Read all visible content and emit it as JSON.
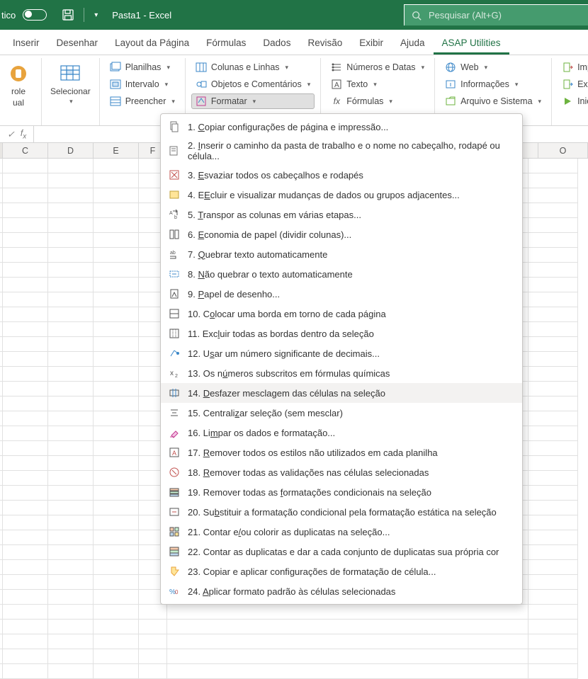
{
  "titlebar": {
    "autosave_label": "tico",
    "document_title": "Pasta1 - Excel",
    "search_placeholder": "Pesquisar (Alt+G)"
  },
  "tabs": [
    {
      "label": "Inserir",
      "active": false
    },
    {
      "label": "Desenhar",
      "active": false
    },
    {
      "label": "Layout da Página",
      "active": false
    },
    {
      "label": "Fórmulas",
      "active": false
    },
    {
      "label": "Dados",
      "active": false
    },
    {
      "label": "Revisão",
      "active": false
    },
    {
      "label": "Exibir",
      "active": false
    },
    {
      "label": "Ajuda",
      "active": false
    },
    {
      "label": "ASAP Utilities",
      "active": true
    }
  ],
  "ribbon": {
    "group1": {
      "line1": "role",
      "line2": "ual"
    },
    "group2": {
      "label": "Selecionar"
    },
    "group3": {
      "planilhas": "Planilhas",
      "intervalo": "Intervalo",
      "preencher": "Preencher"
    },
    "group4": {
      "colunas": "Colunas e Linhas",
      "objetos": "Objetos e Comentários",
      "formatar": "Formatar"
    },
    "group5": {
      "numeros": "Números e Datas",
      "texto": "Texto",
      "formulas": "Fórmulas"
    },
    "group6": {
      "web": "Web",
      "info": "Informações",
      "arquivo": "Arquivo e Sistema"
    },
    "group7": {
      "importar": "Importar",
      "exportar": "Exportar",
      "iniciar": "Iniciar"
    }
  },
  "columns": [
    "",
    "C",
    "D",
    "E",
    "F",
    "",
    "",
    "",
    "",
    "",
    "",
    "",
    "O"
  ],
  "menu": [
    {
      "n": "1",
      "u": "C",
      "rest": "opiar configurações de página e impressão...",
      "icon": "copy-page",
      "hover": false
    },
    {
      "n": "2",
      "u": "I",
      "rest": "nserir o caminho da pasta de trabalho e o nome no cabeçalho, rodapé ou célula...",
      "icon": "insert-path",
      "hover": false
    },
    {
      "n": "3",
      "u": "E",
      "rest": "svaziar todos os cabeçalhos e rodapés",
      "icon": "empty-hf",
      "hover": false
    },
    {
      "n": "4",
      "u": "E",
      "pre": "E",
      "rest": "cluir e visualizar mudanças de dados ou grupos adjacentes...",
      "icon": "highlight",
      "u2": "x",
      "hover": false
    },
    {
      "n": "5",
      "u": "T",
      "rest": "ranspor as colunas em várias etapas...",
      "icon": "transpose",
      "hover": false
    },
    {
      "n": "6",
      "u": "E",
      "rest": "conomia de papel (dividir colunas)...",
      "icon": "paper-save",
      "hover": false
    },
    {
      "n": "7",
      "u": "Q",
      "rest": "uebrar texto automaticamente",
      "icon": "wrap",
      "hover": false
    },
    {
      "n": "8",
      "u": "N",
      "rest": "ão quebrar o texto automaticamente",
      "icon": "unwrap",
      "hover": false
    },
    {
      "n": "9",
      "u": "P",
      "rest": "apel de desenho...",
      "icon": "draw-paper",
      "hover": false
    },
    {
      "n": "10",
      "u": "o",
      "pre": "C",
      "rest": "locar uma borda em torno de cada página",
      "icon": "page-border",
      "hover": false
    },
    {
      "n": "11",
      "u": "l",
      "pre": "Exc",
      "rest": "uir todas as bordas dentro da seleção",
      "icon": "del-border",
      "hover": false
    },
    {
      "n": "12",
      "u": "s",
      "pre": "U",
      "rest": "ar um número significante de decimais...",
      "icon": "decimals",
      "hover": false
    },
    {
      "n": "13",
      "u": "ú",
      "pre": "Os n",
      "rest": "meros subscritos em fórmulas químicas",
      "icon": "subscript",
      "hover": false
    },
    {
      "n": "14",
      "u": "D",
      "rest": "esfazer mesclagem das células na seleção",
      "icon": "unmerge",
      "hover": true
    },
    {
      "n": "15",
      "u": "z",
      "pre": "Centrali",
      "rest": "ar seleção (sem mesclar)",
      "icon": "center",
      "hover": false
    },
    {
      "n": "16",
      "u": "m",
      "pre": "Li",
      "rest": "par os dados e formatação...",
      "icon": "clear",
      "hover": false
    },
    {
      "n": "17",
      "u": "R",
      "rest": "emover todos os estilos não utilizados em cada planilha",
      "icon": "rm-styles",
      "hover": false
    },
    {
      "n": "18",
      "u": "R",
      "rest": "emover todas as validações nas células selecionadas",
      "icon": "rm-valid",
      "hover": false
    },
    {
      "n": "19",
      "u": "f",
      "pre": "Remover todas as ",
      "rest": "ormatações condicionais na seleção",
      "icon": "rm-cond",
      "hover": false
    },
    {
      "n": "20",
      "u": "b",
      "pre": "Su",
      "rest": "stituir a formatação condicional pela formatação estática na seleção",
      "icon": "repl-cond",
      "hover": false
    },
    {
      "n": "21",
      "u": "/",
      "pre": "Contar e",
      "rest": "ou colorir as duplicatas na seleção...",
      "icon": "dup-color",
      "hover": false
    },
    {
      "n": "22",
      "u": "j",
      "pre": "Contar as duplicatas e dar a cada con",
      "rest": "unto de duplicatas sua própria cor",
      "icon": "dup-each",
      "hover": false
    },
    {
      "n": "23",
      "u": "g",
      "pre": "Copiar e aplicar confi",
      "rest": "urações de formatação de célula...",
      "icon": "copy-fmt",
      "hover": false
    },
    {
      "n": "24",
      "u": "A",
      "rest": "plicar formato padrão às células selecionadas",
      "icon": "def-fmt",
      "hover": false
    }
  ],
  "colors": {
    "brand": "#217346",
    "brand_light": "#459b6e",
    "border": "#d4d4d4",
    "menu_hover": "#f3f2f1"
  }
}
